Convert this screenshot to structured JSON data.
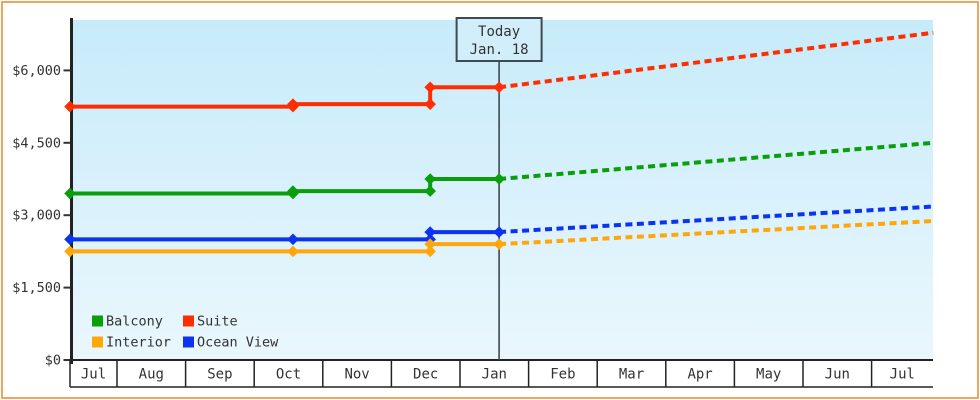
{
  "page": {
    "border_color": "#eda65f",
    "background_color": "#ffffff"
  },
  "chart_data": {
    "type": "line",
    "subtype": "step-line-with-forecast",
    "title": "",
    "xlabel": "",
    "ylabel": "",
    "grid": false,
    "plot_bg_top_color": "#c7ebfa",
    "plot_bg_bottom_color": "#eaf7fd",
    "axis_color": "#222222",
    "text_color": "#333333",
    "today_line_color": "#3e4a52",
    "ytick_labels": [
      "$0",
      "$1,500",
      "$3,000",
      "$4,500",
      "$6,000"
    ],
    "ytick_values": [
      0,
      1500,
      3000,
      4500,
      6000
    ],
    "ylim": [
      0,
      7050
    ],
    "months": [
      "Jul",
      "Aug",
      "Sep",
      "Oct",
      "Nov",
      "Dec",
      "Jan",
      "Feb",
      "Mar",
      "Apr",
      "May",
      "Jun",
      "Jul"
    ],
    "x_range_months_from_jul1": [
      0.315,
      12.9
    ],
    "today": {
      "line1": "Today",
      "line2": "Jan. 18",
      "t_months_from_jul1": 6.57
    },
    "series": [
      {
        "name": "Suite",
        "color": "#ff2e00",
        "marker": "diamond",
        "observations": [
          {
            "t": 0.315,
            "date": "Jul",
            "value": 5250
          },
          {
            "t": 3.565,
            "date": "Oct 18",
            "value": 5300
          },
          {
            "t": 5.565,
            "date": "Dec 18",
            "value": 5650
          }
        ],
        "forecast": {
          "t": 12.9,
          "value": 6780
        }
      },
      {
        "name": "Balcony",
        "color": "#0a9e0a",
        "marker": "diamond",
        "observations": [
          {
            "t": 0.315,
            "date": "Jul",
            "value": 3450
          },
          {
            "t": 3.565,
            "date": "Oct 18",
            "value": 3500
          },
          {
            "t": 5.565,
            "date": "Dec 18",
            "value": 3750
          }
        ],
        "forecast": {
          "t": 12.9,
          "value": 4500
        }
      },
      {
        "name": "Ocean View",
        "color": "#0c33f0",
        "marker": "diamond",
        "observations": [
          {
            "t": 0.315,
            "date": "Jul",
            "value": 2500
          },
          {
            "t": 3.565,
            "date": "Oct 18",
            "value": 2500
          },
          {
            "t": 5.565,
            "date": "Dec 18",
            "value": 2650
          }
        ],
        "forecast": {
          "t": 12.9,
          "value": 3180
        }
      },
      {
        "name": "Interior",
        "color": "#ffa70a",
        "marker": "diamond",
        "observations": [
          {
            "t": 0.315,
            "date": "Jul",
            "value": 2250
          },
          {
            "t": 3.565,
            "date": "Oct 18",
            "value": 2250
          },
          {
            "t": 5.565,
            "date": "Dec 18",
            "value": 2400
          }
        ],
        "forecast": {
          "t": 12.9,
          "value": 2880
        }
      }
    ],
    "legend_position": "bottom-left",
    "legend_items": [
      {
        "label": "Balcony",
        "color": "#0a9e0a"
      },
      {
        "label": "Suite",
        "color": "#ff2e00"
      },
      {
        "label": "Interior",
        "color": "#ffa70a"
      },
      {
        "label": "Ocean View",
        "color": "#0c33f0"
      }
    ]
  }
}
